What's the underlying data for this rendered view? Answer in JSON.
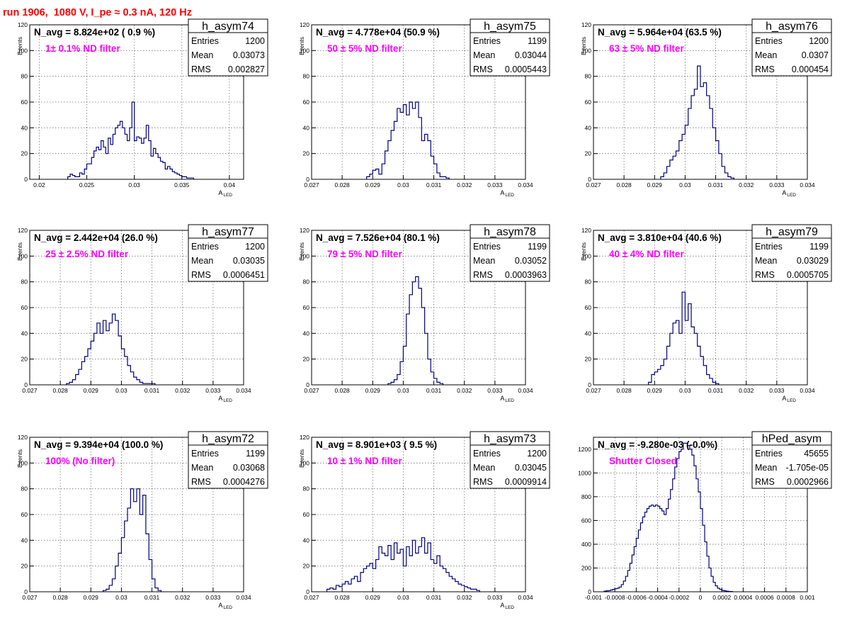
{
  "header": {
    "title": "run 1906,  1080 V, I_pe ≈ 0.3 nA, 120 Hz"
  },
  "colors": {
    "title": "#ff0000",
    "annotation": "#ff00ff",
    "histogram": "#000080"
  },
  "chart_data": [
    {
      "type": "histogram",
      "name": "h_asym74",
      "annotation": "N_avg = 8.824e+02 ( 0.9 %)",
      "label": "1± 0.1% ND filter",
      "stats": [
        [
          "Entries",
          "1200"
        ],
        [
          "Mean",
          "0.03073"
        ],
        [
          "RMS",
          "0.002827"
        ]
      ],
      "xlim": [
        0.019,
        0.0415
      ],
      "ylim": [
        0,
        120
      ],
      "xticks": [
        0.02,
        0.025,
        0.03,
        0.035,
        0.04
      ],
      "xticklabels": [
        "0.02",
        "0.025",
        "0.03",
        "0.035",
        "0.04"
      ],
      "yticks": [
        0,
        20,
        40,
        60,
        80,
        100,
        120
      ],
      "ylabel": "Events",
      "xlabel": "A",
      "xlabel_sub": "LED",
      "bin_start": 0.023,
      "bin_width": 0.00025,
      "counts": [
        2,
        4,
        3,
        2,
        2,
        5,
        4,
        8,
        12,
        12,
        17,
        22,
        25,
        23,
        30,
        25,
        20,
        32,
        27,
        35,
        40,
        42,
        45,
        40,
        35,
        30,
        40,
        60,
        30,
        33,
        32,
        28,
        32,
        42,
        30,
        18,
        24,
        20,
        17,
        14,
        13,
        8,
        10,
        8,
        6,
        5,
        4,
        3,
        2,
        2,
        1,
        1,
        1
      ]
    },
    {
      "type": "histogram",
      "name": "h_asym75",
      "annotation": "N_avg = 4.778e+04 (50.9 %)",
      "label": "50 ± 5% ND filter",
      "stats": [
        [
          "Entries",
          "1199"
        ],
        [
          "Mean",
          "0.03044"
        ],
        [
          "RMS",
          "0.0005443"
        ]
      ],
      "xlim": [
        0.027,
        0.034
      ],
      "ylim": [
        0,
        120
      ],
      "xticks": [
        0.027,
        0.028,
        0.029,
        0.03,
        0.031,
        0.032,
        0.033,
        0.034
      ],
      "xticklabels": [
        "0.027",
        "0.028",
        "0.029",
        "0.03",
        "0.031",
        "0.032",
        "0.033",
        "0.034"
      ],
      "yticks": [
        0,
        20,
        40,
        60,
        80,
        100,
        120
      ],
      "ylabel": "Events",
      "xlabel": "A",
      "xlabel_sub": "LED",
      "bin_start": 0.0288,
      "bin_width": 0.0001,
      "counts": [
        2,
        4,
        7,
        8,
        4,
        12,
        22,
        30,
        38,
        45,
        55,
        52,
        58,
        50,
        60,
        55,
        60,
        48,
        30,
        35,
        30,
        18,
        12,
        5,
        2,
        2,
        1
      ]
    },
    {
      "type": "histogram",
      "name": "h_asym76",
      "annotation": "N_avg = 5.964e+04 (63.5 %)",
      "label": "63 ± 5% ND filter",
      "stats": [
        [
          "Entries",
          "1200"
        ],
        [
          "Mean",
          "0.0307"
        ],
        [
          "RMS",
          "0.000454"
        ]
      ],
      "xlim": [
        0.027,
        0.034
      ],
      "ylim": [
        0,
        120
      ],
      "xticks": [
        0.027,
        0.028,
        0.029,
        0.03,
        0.031,
        0.032,
        0.033,
        0.034
      ],
      "xticklabels": [
        "0.027",
        "0.028",
        "0.029",
        "0.03",
        "0.031",
        "0.032",
        "0.033",
        "0.034"
      ],
      "yticks": [
        0,
        20,
        40,
        60,
        80,
        100,
        120
      ],
      "ylabel": "Events",
      "xlabel": "A",
      "xlabel_sub": "LED",
      "bin_start": 0.0292,
      "bin_width": 0.0001,
      "counts": [
        2,
        5,
        10,
        15,
        18,
        22,
        30,
        35,
        42,
        55,
        65,
        70,
        88,
        72,
        75,
        65,
        55,
        40,
        30,
        20,
        10,
        5,
        2,
        1
      ]
    },
    {
      "type": "histogram",
      "name": "h_asym77",
      "annotation": "N_avg = 2.442e+04 (26.0 %)",
      "label": "25 ± 2.5% ND filter",
      "stats": [
        [
          "Entries",
          "1200"
        ],
        [
          "Mean",
          "0.03035"
        ],
        [
          "RMS",
          "0.0006451"
        ]
      ],
      "xlim": [
        0.027,
        0.034
      ],
      "ylim": [
        0,
        120
      ],
      "xticks": [
        0.027,
        0.028,
        0.029,
        0.03,
        0.031,
        0.032,
        0.033,
        0.034
      ],
      "xticklabels": [
        "0.027",
        "0.028",
        "0.029",
        "0.03",
        "0.031",
        "0.032",
        "0.033",
        "0.034"
      ],
      "yticks": [
        0,
        20,
        40,
        60,
        80,
        100,
        120
      ],
      "ylabel": "Events",
      "xlabel": "A",
      "xlabel_sub": "LED",
      "bin_start": 0.0282,
      "bin_width": 0.0001,
      "counts": [
        1,
        2,
        4,
        8,
        12,
        18,
        22,
        28,
        34,
        40,
        48,
        40,
        50,
        42,
        48,
        55,
        50,
        38,
        28,
        22,
        15,
        10,
        6,
        4,
        2,
        1,
        1,
        1,
        1
      ]
    },
    {
      "type": "histogram",
      "name": "h_asym78",
      "annotation": "N_avg = 7.526e+04 (80.1 %)",
      "label": "79 ± 5% ND filter",
      "stats": [
        [
          "Entries",
          "1199"
        ],
        [
          "Mean",
          "0.03052"
        ],
        [
          "RMS",
          "0.0003963"
        ]
      ],
      "xlim": [
        0.027,
        0.034
      ],
      "ylim": [
        0,
        120
      ],
      "xticks": [
        0.027,
        0.028,
        0.029,
        0.03,
        0.031,
        0.032,
        0.033,
        0.034
      ],
      "xticklabels": [
        "0.027",
        "0.028",
        "0.029",
        "0.03",
        "0.031",
        "0.032",
        "0.033",
        "0.034"
      ],
      "yticks": [
        0,
        20,
        40,
        60,
        80,
        100,
        120
      ],
      "ylabel": "Events",
      "xlabel": "A",
      "xlabel_sub": "LED",
      "bin_start": 0.0295,
      "bin_width": 0.0001,
      "counts": [
        1,
        2,
        4,
        8,
        18,
        30,
        55,
        70,
        80,
        84,
        75,
        60,
        40,
        20,
        10,
        5,
        2,
        1
      ]
    },
    {
      "type": "histogram",
      "name": "h_asym79",
      "annotation": "N_avg = 3.810e+04 (40.6 %)",
      "label": "40 ± 4% ND filter",
      "stats": [
        [
          "Entries",
          "1199"
        ],
        [
          "Mean",
          "0.03029"
        ],
        [
          "RMS",
          "0.0005705"
        ]
      ],
      "xlim": [
        0.027,
        0.034
      ],
      "ylim": [
        0,
        120
      ],
      "xticks": [
        0.027,
        0.028,
        0.029,
        0.03,
        0.031,
        0.032,
        0.033,
        0.034
      ],
      "xticklabels": [
        "0.027",
        "0.028",
        "0.029",
        "0.03",
        "0.031",
        "0.032",
        "0.033",
        "0.034"
      ],
      "yticks": [
        0,
        20,
        40,
        60,
        80,
        100,
        120
      ],
      "ylabel": "Events",
      "xlabel": "A",
      "xlabel_sub": "LED",
      "bin_start": 0.0288,
      "bin_width": 0.0001,
      "counts": [
        2,
        8,
        10,
        12,
        15,
        20,
        30,
        40,
        48,
        50,
        40,
        72,
        50,
        63,
        45,
        40,
        30,
        22,
        15,
        8,
        5,
        2,
        1
      ]
    },
    {
      "type": "histogram",
      "name": "h_asym72",
      "annotation": "N_avg = 9.394e+04 (100.0 %)",
      "label": "100% (No filter)",
      "stats": [
        [
          "Entries",
          "1199"
        ],
        [
          "Mean",
          "0.03068"
        ],
        [
          "RMS",
          "0.0004276"
        ]
      ],
      "xlim": [
        0.027,
        0.034
      ],
      "ylim": [
        0,
        120
      ],
      "xticks": [
        0.027,
        0.028,
        0.029,
        0.03,
        0.031,
        0.032,
        0.033,
        0.034
      ],
      "xticklabels": [
        "0.027",
        "0.028",
        "0.029",
        "0.03",
        "0.031",
        "0.032",
        "0.033",
        "0.034"
      ],
      "yticks": [
        0,
        20,
        40,
        60,
        80,
        100,
        120
      ],
      "ylabel": "Events",
      "xlabel": "A",
      "xlabel_sub": "LED",
      "bin_start": 0.0294,
      "bin_width": 0.0001,
      "counts": [
        1,
        2,
        5,
        10,
        20,
        30,
        42,
        55,
        65,
        80,
        70,
        80,
        60,
        75,
        45,
        25,
        10,
        3,
        1
      ]
    },
    {
      "type": "histogram",
      "name": "h_asym73",
      "annotation": "N_avg = 8.901e+03 ( 9.5 %)",
      "label": "10 ± 1% ND filter",
      "stats": [
        [
          "Entries",
          "1200"
        ],
        [
          "Mean",
          "0.03045"
        ],
        [
          "RMS",
          "0.0009914"
        ]
      ],
      "xlim": [
        0.027,
        0.034
      ],
      "ylim": [
        0,
        120
      ],
      "xticks": [
        0.027,
        0.028,
        0.029,
        0.03,
        0.031,
        0.032,
        0.033,
        0.034
      ],
      "xticklabels": [
        "0.027",
        "0.028",
        "0.029",
        "0.03",
        "0.031",
        "0.032",
        "0.033",
        "0.034"
      ],
      "yticks": [
        0,
        20,
        40,
        60,
        80,
        100,
        120
      ],
      "ylabel": "Events",
      "xlabel": "A",
      "xlabel_sub": "LED",
      "bin_start": 0.0275,
      "bin_width": 0.0001,
      "counts": [
        2,
        3,
        2,
        5,
        4,
        6,
        8,
        6,
        10,
        12,
        8,
        15,
        18,
        20,
        22,
        18,
        25,
        35,
        30,
        28,
        36,
        25,
        38,
        30,
        33,
        20,
        35,
        28,
        40,
        30,
        35,
        42,
        30,
        38,
        25,
        22,
        28,
        20,
        18,
        15,
        12,
        10,
        8,
        6,
        5,
        4,
        3,
        2,
        2,
        1
      ]
    },
    {
      "type": "histogram",
      "name": "hPed_asym",
      "annotation": "N_avg = -9.280e-03 (-0.0%)",
      "label": "Shutter Closed",
      "stats": [
        [
          "Entries",
          "45655"
        ],
        [
          "Mean",
          "-1.705e-05"
        ],
        [
          "RMS",
          "0.0002966"
        ]
      ],
      "xlim": [
        -0.001,
        0.001
      ],
      "ylim": [
        0,
        1300
      ],
      "xticks": [
        -0.001,
        -0.0008,
        -0.0006,
        -0.0004,
        -0.0002,
        0,
        0.0002,
        0.0004,
        0.0006,
        0.0008,
        0.001
      ],
      "xticklabels": [
        "-0.001",
        "-0.0008",
        "-0.0006",
        "-0.0004",
        "-0.0002",
        "0",
        "0.0002",
        "0.0004",
        "0.0006",
        "0.0008",
        "0.001"
      ],
      "yticks": [
        0,
        200,
        400,
        600,
        800,
        1000,
        1200
      ],
      "ylabel": "",
      "xlabel": "",
      "xlabel_sub": "",
      "bin_start": -0.0009,
      "bin_width": 2e-05,
      "counts": [
        5,
        8,
        10,
        15,
        20,
        25,
        30,
        40,
        60,
        90,
        130,
        180,
        240,
        310,
        380,
        450,
        520,
        580,
        630,
        670,
        700,
        720,
        730,
        720,
        730,
        720,
        700,
        680,
        650,
        700,
        780,
        860,
        950,
        1050,
        1120,
        1180,
        1200,
        1250,
        1250,
        1230,
        1200,
        1150,
        1060,
        950,
        840,
        700,
        560,
        420,
        300,
        200,
        130,
        80,
        50,
        30,
        20,
        12,
        8,
        5,
        3,
        2
      ]
    }
  ]
}
